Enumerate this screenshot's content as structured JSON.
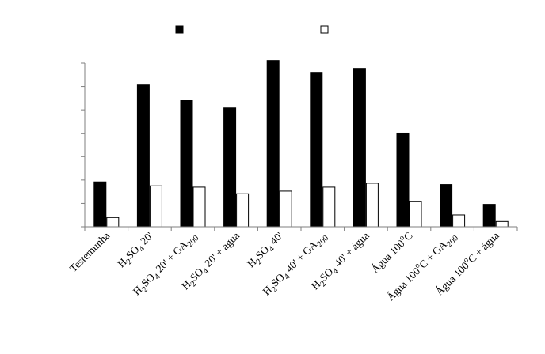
{
  "chart_data": {
    "type": "bar",
    "title": "",
    "xlabel": "",
    "ylabel": "",
    "ylim": [
      0,
      6.2
    ],
    "grid": false,
    "legend_placement": "top",
    "categories": [
      {
        "parts": [
          {
            "t": "Testemunha"
          }
        ]
      },
      {
        "parts": [
          {
            "t": "H"
          },
          {
            "t": "2",
            "sub": true
          },
          {
            "t": "SO"
          },
          {
            "t": "4",
            "sub": true
          },
          {
            "t": " 20'"
          }
        ]
      },
      {
        "parts": [
          {
            "t": "H"
          },
          {
            "t": "2",
            "sub": true
          },
          {
            "t": "SO"
          },
          {
            "t": "4",
            "sub": true
          },
          {
            "t": " 20' + GA"
          },
          {
            "t": "200",
            "sub": true
          }
        ]
      },
      {
        "parts": [
          {
            "t": "H"
          },
          {
            "t": "2",
            "sub": true
          },
          {
            "t": "SO"
          },
          {
            "t": "4",
            "sub": true
          },
          {
            "t": " 20' + água"
          }
        ]
      },
      {
        "parts": [
          {
            "t": "H"
          },
          {
            "t": "2",
            "sub": true
          },
          {
            "t": "SO"
          },
          {
            "t": "4",
            "sub": true
          },
          {
            "t": " 40'"
          }
        ]
      },
      {
        "parts": [
          {
            "t": "H"
          },
          {
            "t": "2",
            "sub": true
          },
          {
            "t": "SO"
          },
          {
            "t": "4",
            "sub": true
          },
          {
            "t": " 40' + GA"
          },
          {
            "t": "200",
            "sub": true
          }
        ]
      },
      {
        "parts": [
          {
            "t": "H"
          },
          {
            "t": "2",
            "sub": true
          },
          {
            "t": "SO"
          },
          {
            "t": "4",
            "sub": true
          },
          {
            "t": " 40' + água"
          }
        ]
      },
      {
        "parts": [
          {
            "t": "Água 100"
          },
          {
            "t": "o",
            "sup": true
          },
          {
            "t": "C"
          }
        ]
      },
      {
        "parts": [
          {
            "t": "Água 100"
          },
          {
            "t": "o",
            "sup": true
          },
          {
            "t": "C +  GA"
          },
          {
            "t": "200",
            "sub": true
          }
        ]
      },
      {
        "parts": [
          {
            "t": "Água 100"
          },
          {
            "t": "o",
            "sup": true
          },
          {
            "t": "C + água"
          }
        ]
      }
    ],
    "series": [
      {
        "fill": "#000000",
        "values": [
          1.7,
          5.4,
          4.8,
          4.5,
          6.3,
          5.85,
          6.0,
          3.55,
          1.6,
          0.85
        ]
      },
      {
        "fill": "#ffffff",
        "values": [
          0.35,
          1.55,
          1.5,
          1.25,
          1.35,
          1.5,
          1.65,
          0.95,
          0.45,
          0.2
        ]
      }
    ],
    "legend": [
      {
        "swatch": "#000000"
      },
      {
        "swatch": "#ffffff"
      }
    ]
  }
}
